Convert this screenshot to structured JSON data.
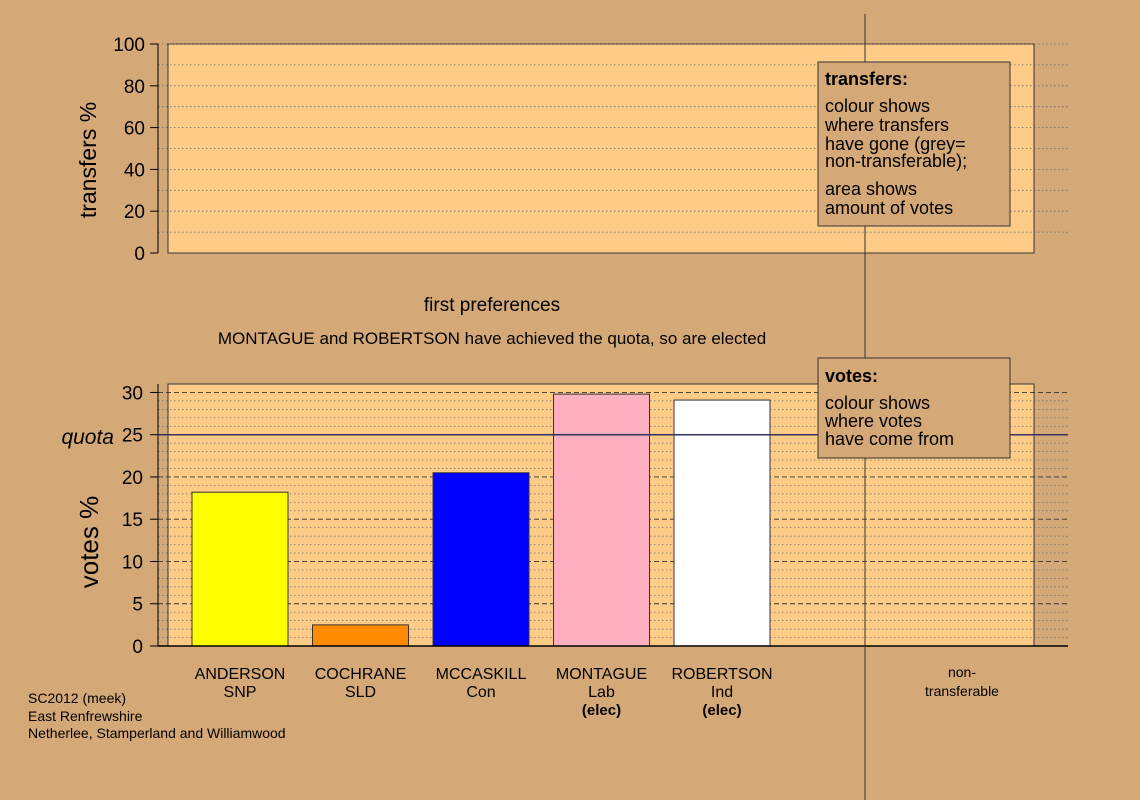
{
  "colors": {
    "background": "#d4a977",
    "plot_fill": "#ffcc88",
    "quota_line": "#333366",
    "bar_outline": "#333333"
  },
  "transfers_chart": {
    "ylabel": "transfers %",
    "yticks": [
      "0",
      "20",
      "40",
      "60",
      "80",
      "100"
    ],
    "xlabel": "first preferences"
  },
  "status_message": "MONTAGUE and ROBERTSON have achieved the quota, so are elected",
  "legend_transfers": {
    "title": "transfers:",
    "line1": "colour shows",
    "line2": "where transfers",
    "line3": "have gone (grey=",
    "line4": "non-transferable);",
    "line5": "area shows",
    "line6": "amount of votes"
  },
  "legend_votes": {
    "title": "votes:",
    "line1": "colour shows",
    "line2": "where votes",
    "line3": "have come from"
  },
  "votes_chart": {
    "ylabel": "votes %",
    "quota_label": "quota",
    "yticks": [
      "0",
      "5",
      "10",
      "15",
      "20",
      "25",
      "30"
    ],
    "non_transferable_line1": "non-",
    "non_transferable_line2": "transferable"
  },
  "chart_data": {
    "type": "bar",
    "ylim": [
      0,
      31
    ],
    "quota": 25,
    "candidates": [
      {
        "name": "ANDERSON",
        "party": "SNP",
        "value": 18.2,
        "color": "#ffff00",
        "status": ""
      },
      {
        "name": "COCHRANE",
        "party": "SLD",
        "value": 2.5,
        "color": "#ff8c00",
        "status": ""
      },
      {
        "name": "MCCASKILL",
        "party": "Con",
        "value": 20.5,
        "color": "#0000ff",
        "status": ""
      },
      {
        "name": "MONTAGUE",
        "party": "Lab",
        "value": 29.8,
        "color": "#ffb0c0",
        "status": "(elec)"
      },
      {
        "name": "ROBERTSON",
        "party": "Ind",
        "value": 29.1,
        "color": "#ffffff",
        "status": "(elec)"
      }
    ]
  },
  "footer": {
    "line1": "SC2012 (meek)",
    "line2": "East Renfrewshire",
    "line3": "Netherlee, Stamperland and Williamwood"
  }
}
